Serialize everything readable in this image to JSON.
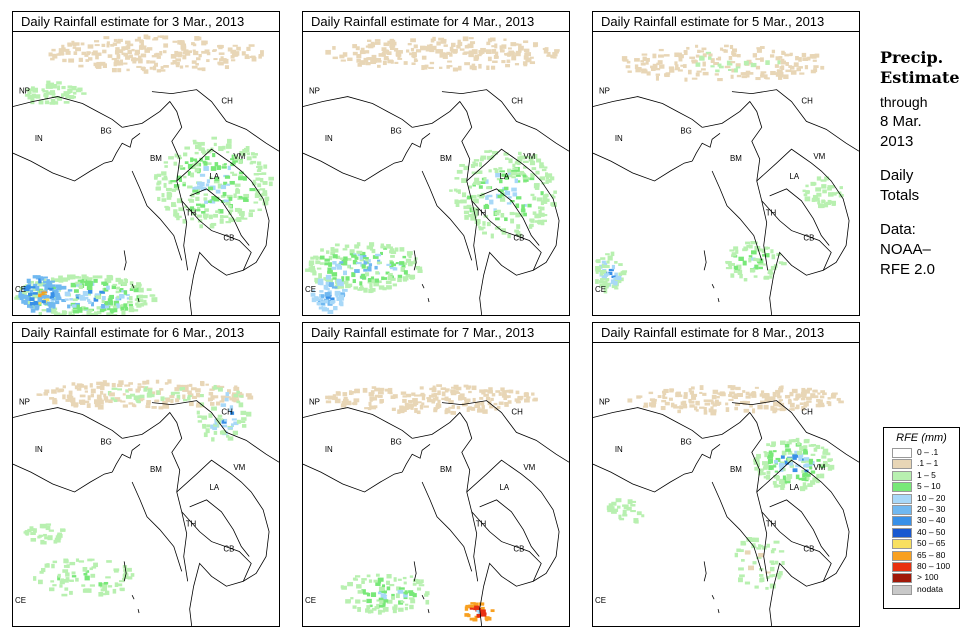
{
  "panels": [
    {
      "title": "Daily Rainfall estimate for  3 Mar., 2013",
      "rain": "heavy_south"
    },
    {
      "title": "Daily Rainfall estimate for  4 Mar., 2013",
      "rain": "moderate"
    },
    {
      "title": "Daily Rainfall estimate for  5 Mar., 2013",
      "rain": "light"
    },
    {
      "title": "Daily Rainfall estimate for  6 Mar., 2013",
      "rain": "light_north"
    },
    {
      "title": "Daily Rainfall estimate for  7 Mar., 2013",
      "rain": "sparse"
    },
    {
      "title": "Daily Rainfall estimate for  8 Mar., 2013",
      "rain": "laos"
    }
  ],
  "map_labels": {
    "np": "NP",
    "ch": "CH",
    "in": "IN",
    "bg": "BG",
    "bm": "BM",
    "vm": "VM",
    "la": "LA",
    "th": "TH",
    "cb": "CB",
    "ce": "CE"
  },
  "sidebar": {
    "title_line1": "Precip.",
    "title_line2": "Estimate",
    "through": "through",
    "date_line1": "8 Mar.",
    "date_line2": "2013",
    "daily_line1": "Daily",
    "daily_line2": "Totals",
    "data_line1": "Data:",
    "data_line2": "NOAA–",
    "data_line3": "RFE 2.0"
  },
  "legend": {
    "title": "RFE (mm)",
    "items": [
      {
        "label": "0 – .1",
        "color": "#ffffff"
      },
      {
        "label": ".1 – 1",
        "color": "#e8d6b6"
      },
      {
        "label": "1 – 5",
        "color": "#b8f0b0"
      },
      {
        "label": "5 – 10",
        "color": "#78e878"
      },
      {
        "label": "10 – 20",
        "color": "#a8d8f8"
      },
      {
        "label": "20 – 30",
        "color": "#70b8f0"
      },
      {
        "label": "30 – 40",
        "color": "#3890e8"
      },
      {
        "label": "40 – 50",
        "color": "#1858d0"
      },
      {
        "label": "50 – 65",
        "color": "#f8e060"
      },
      {
        "label": "65 – 80",
        "color": "#f8a020"
      },
      {
        "label": "80 – 100",
        "color": "#e83010"
      },
      {
        "label": "> 100",
        "color": "#a01808"
      },
      {
        "label": "nodata",
        "color": "#c8c8c8"
      }
    ]
  }
}
